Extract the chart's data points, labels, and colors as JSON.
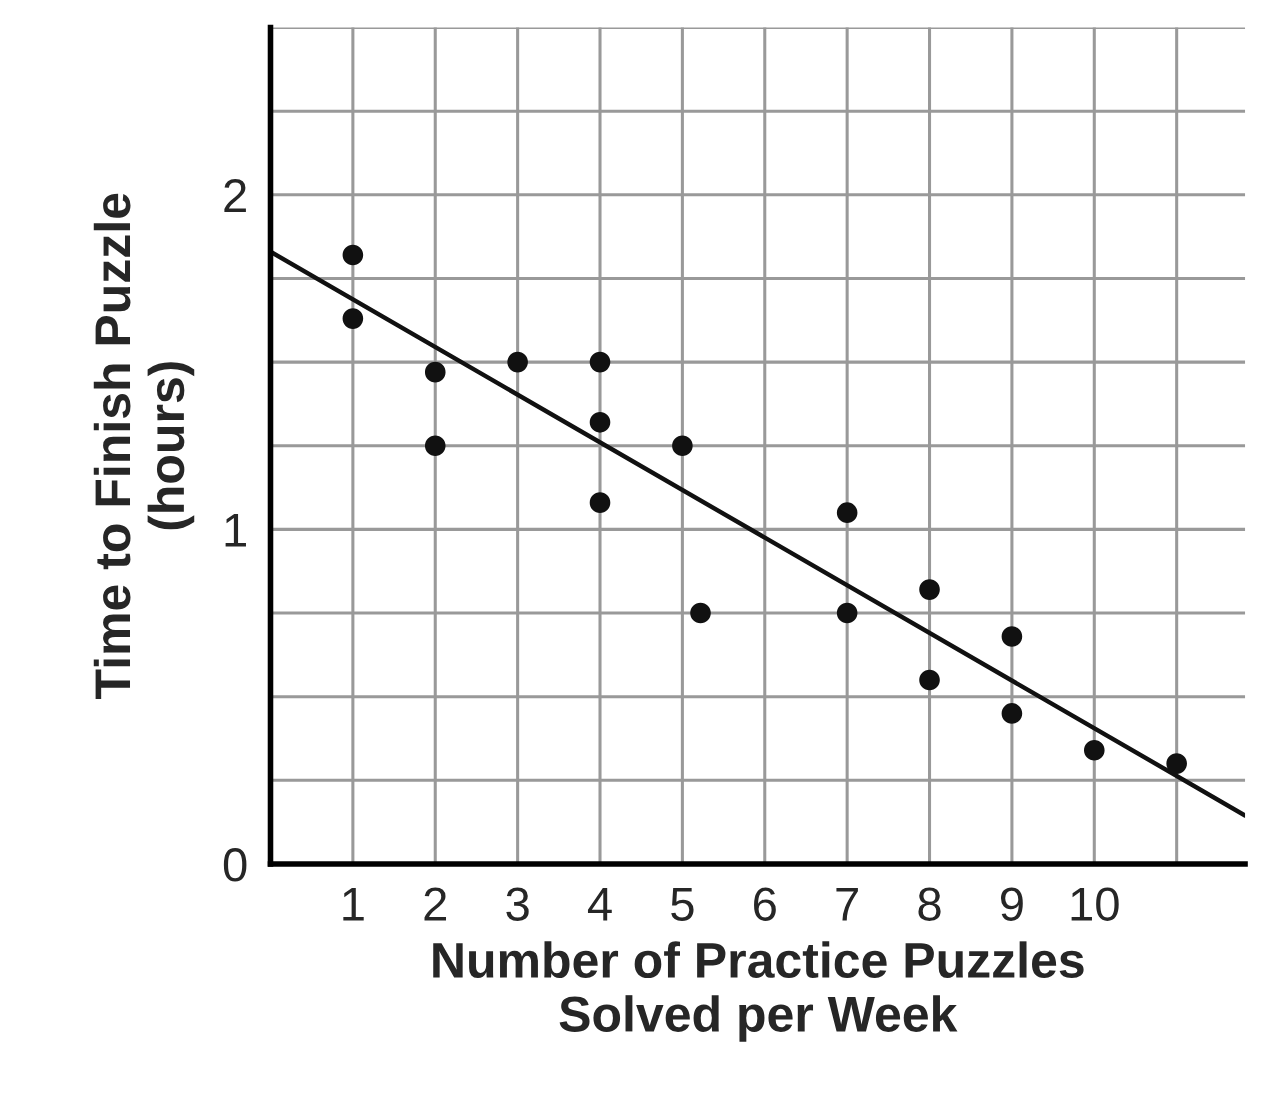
{
  "chart_data": {
    "type": "scatter",
    "xlabel": "Number of Practice Puzzles\nSolved per Week",
    "ylabel": "Time to Finish Puzzle\n(hours)",
    "series": [
      {
        "marker": "circle",
        "color": "#111111",
        "x": [
          1,
          1,
          2,
          2,
          3,
          4,
          4,
          4,
          5,
          5.22,
          7,
          7,
          8,
          8,
          9,
          9,
          10,
          11
        ],
        "values": [
          1.82,
          1.63,
          1.47,
          1.25,
          1.5,
          1.5,
          1.32,
          1.08,
          1.25,
          0.75,
          1.05,
          0.75,
          0.82,
          0.55,
          0.68,
          0.45,
          0.34,
          0.3
        ]
      },
      {
        "type": "line",
        "marker": "none",
        "color": "#111111",
        "x": [
          0,
          11.83
        ],
        "values": [
          1.83,
          0.145
        ]
      }
    ],
    "line_style": "solid",
    "grid": true,
    "xlim": [
      0,
      11.83
    ],
    "ylim": [
      0,
      2.5
    ],
    "xticks": [
      1,
      2,
      3,
      4,
      5,
      6,
      7,
      8,
      9,
      10,
      {
        "value": 11,
        "label": null
      }
    ],
    "yticks": [
      0,
      {
        "value": 0.25,
        "label": null
      },
      {
        "value": 0.5,
        "label": null
      },
      {
        "value": 0.75,
        "label": null
      },
      1,
      {
        "value": 1.25,
        "label": null
      },
      {
        "value": 1.5,
        "label": null
      },
      {
        "value": 1.75,
        "label": null
      },
      2,
      {
        "value": 2.25,
        "label": null
      },
      {
        "value": 2.5,
        "label": null
      }
    ]
  }
}
